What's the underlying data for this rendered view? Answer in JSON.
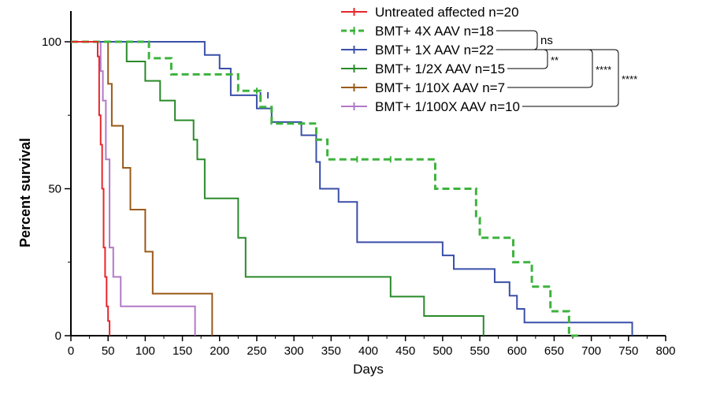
{
  "chart_data": {
    "type": "line",
    "subtype": "kaplan-meier step",
    "title": "",
    "xlabel": "Days",
    "ylabel": "Percent survival",
    "xlim": [
      0,
      800
    ],
    "ylim": [
      0,
      100
    ],
    "x_ticks": [
      "0",
      "50",
      "100",
      "150",
      "200",
      "250",
      "300",
      "350",
      "400",
      "450",
      "500",
      "550",
      "600",
      "650",
      "700",
      "750",
      "800"
    ],
    "y_ticks": [
      "0",
      "50",
      "100"
    ],
    "grid": false,
    "legend_position": "top-right",
    "series": [
      {
        "name": "Untreated affected n=20",
        "color": "#e8262b",
        "dashed": false,
        "x": [
          0,
          36,
          38,
          40,
          42,
          44,
          46,
          48,
          50,
          52
        ],
        "y": [
          100,
          95,
          75,
          65,
          50,
          30,
          20,
          10,
          5,
          0
        ],
        "censored_x": [],
        "censored_y": []
      },
      {
        "name": "BMT+ 4X AAV n=18",
        "color": "#3db33d",
        "dashed": true,
        "x": [
          0,
          105,
          135,
          225,
          255,
          270,
          330,
          345,
          490,
          545,
          550,
          595,
          615,
          620,
          645,
          670,
          685
        ],
        "y": [
          100,
          94.4,
          88.9,
          83.3,
          77.8,
          72.2,
          66.7,
          60,
          50,
          40,
          33.3,
          25,
          25,
          16.7,
          8.3,
          0,
          0
        ],
        "censored_x": [
          250,
          385,
          430
        ],
        "censored_y": [
          83.3,
          60,
          60
        ]
      },
      {
        "name": "BMT+ 1X AAV n=22",
        "color": "#3a4fa8",
        "dashed": false,
        "x": [
          0,
          180,
          200,
          215,
          250,
          270,
          310,
          330,
          335,
          360,
          385,
          500,
          515,
          570,
          590,
          600,
          610,
          755
        ],
        "y": [
          100,
          95.5,
          90.9,
          81.8,
          77.3,
          72.7,
          68.2,
          59.1,
          50,
          45.5,
          31.8,
          27.3,
          22.7,
          18.2,
          13.6,
          9.1,
          4.5,
          0
        ],
        "censored_x": [
          255,
          265
        ],
        "censored_y": [
          81.8,
          81.8
        ]
      },
      {
        "name": "BMT+ 1/2X AAV n=15",
        "color": "#2a8a2a",
        "dashed": false,
        "x": [
          0,
          75,
          100,
          120,
          140,
          165,
          170,
          180,
          225,
          235,
          430,
          475,
          555
        ],
        "y": [
          100,
          93.3,
          86.7,
          80,
          73.3,
          66.7,
          60,
          46.7,
          33.3,
          20,
          13.3,
          6.7,
          0
        ],
        "censored_x": [],
        "censored_y": []
      },
      {
        "name": "BMT+ 1/10X AAV n=7",
        "color": "#9a5a1a",
        "dashed": false,
        "x": [
          0,
          50,
          55,
          70,
          80,
          100,
          110,
          190
        ],
        "y": [
          100,
          85.7,
          71.4,
          57.1,
          42.9,
          28.6,
          14.3,
          0
        ],
        "censored_x": [],
        "censored_y": []
      },
      {
        "name": "BMT+ 1/100X AAV n=10",
        "color": "#b278c8",
        "dashed": false,
        "x": [
          0,
          40,
          43,
          47,
          52,
          57,
          67,
          167
        ],
        "y": [
          100,
          90,
          80,
          60,
          30,
          20,
          10,
          0
        ],
        "censored_x": [],
        "censored_y": []
      }
    ],
    "comparisons": [
      {
        "between": [
          "BMT+ 4X AAV n=18",
          "BMT+ 1X AAV n=22"
        ],
        "label": "ns"
      },
      {
        "between": [
          "BMT+ 1X AAV n=22",
          "BMT+ 1/2X AAV n=15"
        ],
        "label": "**"
      },
      {
        "between": [
          "BMT+ 1X AAV n=22",
          "BMT+ 1/10X AAV n=7"
        ],
        "label": "****"
      },
      {
        "between": [
          "BMT+ 1X AAV n=22",
          "BMT+ 1/100X AAV n=10"
        ],
        "label": "****"
      }
    ]
  }
}
